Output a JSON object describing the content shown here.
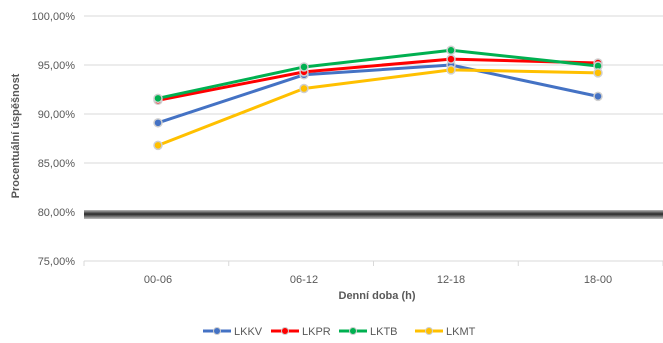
{
  "chart_data": {
    "type": "line",
    "xlabel": "Denní doba (h)",
    "ylabel": "Procentuální úspěšnost",
    "categories": [
      "00-06",
      "06-12",
      "12-18",
      "18-00"
    ],
    "ylim": [
      75,
      100
    ],
    "yticks": [
      75,
      80,
      85,
      90,
      95,
      100
    ],
    "ytick_labels": [
      "75,00%",
      "80,00%",
      "85,00%",
      "90,00%",
      "95,00%",
      "100,00%"
    ],
    "grid": true,
    "legend_position": "bottom",
    "series": [
      {
        "name": "LKKV",
        "color": "#4472C4",
        "values": [
          89.1,
          94.0,
          95.0,
          91.8
        ]
      },
      {
        "name": "LKPR",
        "color": "#FF0000",
        "values": [
          91.4,
          94.3,
          95.6,
          95.2
        ]
      },
      {
        "name": "LKTB",
        "color": "#00B050",
        "values": [
          91.6,
          94.8,
          96.5,
          94.9
        ]
      },
      {
        "name": "LKMT",
        "color": "#FFC000",
        "values": [
          86.8,
          92.6,
          94.5,
          94.2
        ]
      }
    ]
  }
}
